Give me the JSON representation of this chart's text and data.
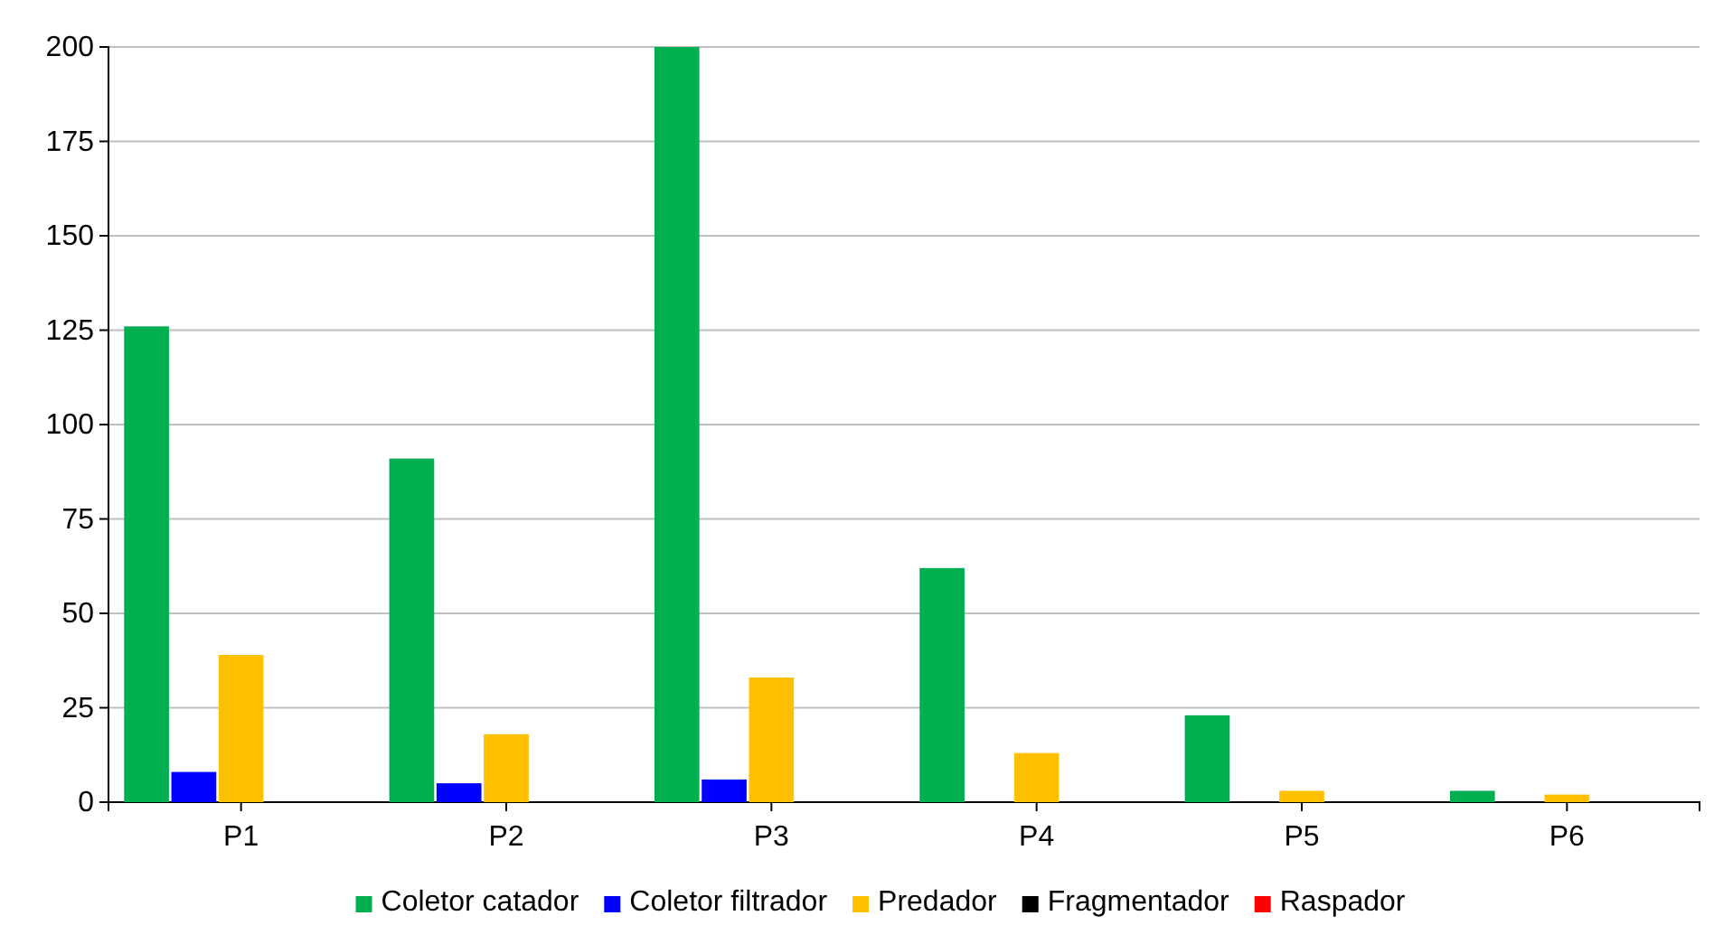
{
  "chart_data": {
    "type": "bar",
    "categories": [
      "P1",
      "P2",
      "P3",
      "P4",
      "P5",
      "P6"
    ],
    "series": [
      {
        "name": "Coletor catador",
        "color": "#00b050",
        "values": [
          126,
          91,
          200,
          62,
          23,
          3
        ]
      },
      {
        "name": "Coletor filtrador",
        "color": "#0000ff",
        "values": [
          8,
          5,
          6,
          0,
          0,
          0
        ]
      },
      {
        "name": "Predador",
        "color": "#ffc000",
        "values": [
          39,
          18,
          33,
          13,
          3,
          2
        ]
      },
      {
        "name": "Fragmentador",
        "color": "#000000",
        "values": [
          0,
          0,
          0,
          0,
          0,
          0
        ]
      },
      {
        "name": "Raspador",
        "color": "#ff0000",
        "values": [
          0,
          0,
          0,
          0,
          0,
          0
        ]
      }
    ],
    "ylim": [
      0,
      200
    ],
    "yticks": [
      0,
      25,
      50,
      75,
      100,
      125,
      150,
      175,
      200
    ],
    "grid": "y",
    "legend": "bottom"
  }
}
